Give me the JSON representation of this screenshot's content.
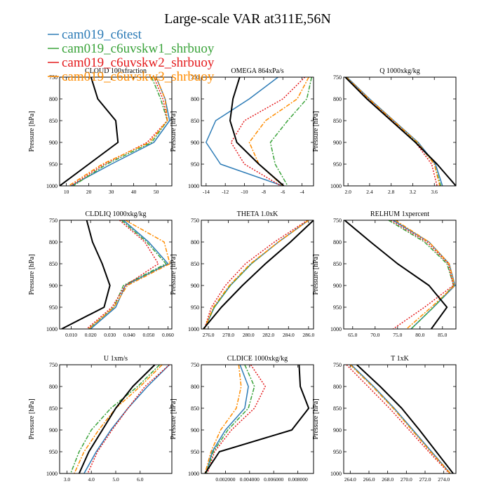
{
  "title": "Large-scale VAR at311E,56N",
  "legend": [
    {
      "name": "cam019_c6test",
      "color": "#2c7bb6"
    },
    {
      "name": "cam019_c6uvskw1_shrbuoy",
      "color": "#3aa33a"
    },
    {
      "name": "cam019_c6uvskw2_shrbuoy",
      "color": "#e41a1c"
    },
    {
      "name": "cam019_c6uvskw3_shrbuoy",
      "color": "#ff8c00"
    }
  ],
  "ref_color": "#000000",
  "chart_data": [
    {
      "type": "line",
      "title": "CLOUD  100xfraction",
      "ylabel": "Pressure [hPa]",
      "ylim": [
        1000,
        750
      ],
      "yticks": [
        750,
        800,
        850,
        900,
        950,
        1000
      ],
      "xlim": [
        7,
        57
      ],
      "xticks": [
        10,
        20,
        30,
        40,
        50
      ],
      "xticklabels": [
        "10",
        "20",
        "30",
        "40",
        "50"
      ],
      "y": [
        750,
        800,
        850,
        900,
        950,
        1000
      ],
      "ref": [
        21,
        24,
        32,
        33,
        20,
        7
      ],
      "series": [
        {
          "name": "cam019_c6test",
          "values": [
            50,
            54,
            56,
            49,
            30,
            12
          ]
        },
        {
          "name": "cam019_c6uvskw1_shrbuoy",
          "values": [
            48,
            52,
            55,
            48,
            28,
            13
          ]
        },
        {
          "name": "cam019_c6uvskw2_shrbuoy",
          "values": [
            49,
            53,
            55,
            46,
            27,
            12
          ]
        },
        {
          "name": "cam019_c6uvskw3_shrbuoy",
          "values": [
            50,
            54,
            55,
            47,
            26,
            11
          ]
        }
      ]
    },
    {
      "type": "line",
      "title": "OMEGA  864xPa/s",
      "ylabel": "Pressure [hPa]",
      "ylim": [
        1000,
        750
      ],
      "yticks": [
        750,
        800,
        850,
        900,
        950,
        1000
      ],
      "xlim": [
        -14.5,
        -2.8
      ],
      "xticks": [
        -14,
        -12,
        -10,
        -8,
        -6,
        -4
      ],
      "xticklabels": [
        "-14",
        "-12",
        "-10",
        "-8",
        "-6",
        "-4"
      ],
      "y": [
        750,
        800,
        850,
        900,
        950,
        1000
      ],
      "ref": [
        -10.5,
        -11.2,
        -11.5,
        -10.8,
        -8.5,
        -5.9
      ],
      "series": [
        {
          "name": "cam019_c6test",
          "values": [
            -6.5,
            -9.5,
            -13.0,
            -14.0,
            -12.5,
            -6.0
          ]
        },
        {
          "name": "cam019_c6uvskw1_shrbuoy",
          "values": [
            -3.0,
            -3.5,
            -5.5,
            -7.3,
            -6.8,
            -5.5
          ]
        },
        {
          "name": "cam019_c6uvskw2_shrbuoy",
          "values": [
            -3.7,
            -6.0,
            -10.0,
            -11.4,
            -10.0,
            -6.2
          ]
        },
        {
          "name": "cam019_c6uvskw3_shrbuoy",
          "values": [
            -3.3,
            -4.5,
            -7.8,
            -9.5,
            -8.5,
            -6.0
          ]
        }
      ]
    },
    {
      "type": "line",
      "title": "Q  1000xkg/kg",
      "ylabel": "Pressure [hPa]",
      "ylim": [
        1000,
        750
      ],
      "yticks": [
        750,
        800,
        850,
        900,
        950,
        1000
      ],
      "xlim": [
        1.92,
        4.0
      ],
      "xticks": [
        2.0,
        2.4,
        2.8,
        3.2,
        3.6
      ],
      "xticklabels": [
        "2.0",
        "2.4",
        "2.8",
        "3.2",
        "3.6"
      ],
      "y": [
        750,
        800,
        850,
        900,
        950,
        1000
      ],
      "ref": [
        1.95,
        2.35,
        2.8,
        3.25,
        3.65,
        4.0
      ],
      "series": [
        {
          "name": "cam019_c6test",
          "values": [
            1.98,
            2.4,
            2.85,
            3.3,
            3.62,
            3.75
          ]
        },
        {
          "name": "cam019_c6uvskw1_shrbuoy",
          "values": [
            1.97,
            2.38,
            2.83,
            3.28,
            3.6,
            3.72
          ]
        },
        {
          "name": "cam019_c6uvskw2_shrbuoy",
          "values": [
            1.96,
            2.37,
            2.82,
            3.25,
            3.55,
            3.65
          ]
        },
        {
          "name": "cam019_c6uvskw3_shrbuoy",
          "values": [
            1.97,
            2.39,
            2.84,
            3.29,
            3.6,
            3.7
          ]
        }
      ]
    },
    {
      "type": "line",
      "title": "CLDLIQ  1000xkg/kg",
      "ylabel": "Pressure [hPa]",
      "ylim": [
        1000,
        750
      ],
      "yticks": [
        750,
        800,
        850,
        900,
        950,
        1000
      ],
      "xlim": [
        0.004,
        0.062
      ],
      "xticks": [
        0.01,
        0.02,
        0.03,
        0.04,
        0.05,
        0.06
      ],
      "xticklabels": [
        "0.010",
        "0.020",
        "0.030",
        "0.040",
        "0.050",
        "0.060"
      ],
      "y": [
        750,
        800,
        850,
        900,
        950,
        1000
      ],
      "ref": [
        0.018,
        0.021,
        0.026,
        0.03,
        0.027,
        0.005
      ],
      "series": [
        {
          "name": "cam019_c6test",
          "values": [
            0.037,
            0.05,
            0.06,
            0.038,
            0.033,
            0.02
          ]
        },
        {
          "name": "cam019_c6uvskw1_shrbuoy",
          "values": [
            0.036,
            0.049,
            0.059,
            0.037,
            0.032,
            0.019
          ]
        },
        {
          "name": "cam019_c6uvskw2_shrbuoy",
          "values": [
            0.035,
            0.048,
            0.055,
            0.038,
            0.031,
            0.018
          ]
        },
        {
          "name": "cam019_c6uvskw3_shrbuoy",
          "values": [
            0.038,
            0.058,
            0.061,
            0.039,
            0.032,
            0.019
          ]
        }
      ]
    },
    {
      "type": "line",
      "title": "THETA  1.0xK",
      "ylabel": "Pressure [hPa]",
      "ylim": [
        1000,
        750
      ],
      "yticks": [
        750,
        800,
        850,
        900,
        950,
        1000
      ],
      "xlim": [
        275.3,
        286.5
      ],
      "xticks": [
        276,
        278,
        280,
        282,
        284,
        286
      ],
      "xticklabels": [
        "276.0",
        "278.0",
        "280.0",
        "282.0",
        "284.0",
        "286.0"
      ],
      "y": [
        750,
        800,
        850,
        900,
        950,
        1000
      ],
      "ref": [
        286.5,
        284.2,
        281.7,
        279.4,
        277.3,
        275.5
      ],
      "series": [
        {
          "name": "cam019_c6test",
          "values": [
            286.0,
            283.0,
            280.3,
            278.2,
            276.6,
            275.6
          ]
        },
        {
          "name": "cam019_c6uvskw1_shrbuoy",
          "values": [
            286.0,
            283.0,
            280.3,
            278.2,
            276.6,
            275.6
          ]
        },
        {
          "name": "cam019_c6uvskw2_shrbuoy",
          "values": [
            285.9,
            282.6,
            279.7,
            277.7,
            276.3,
            275.6
          ]
        },
        {
          "name": "cam019_c6uvskw3_shrbuoy",
          "values": [
            286.0,
            283.0,
            280.2,
            278.1,
            276.5,
            275.6
          ]
        }
      ]
    },
    {
      "type": "line",
      "title": "RELHUM  1xpercent",
      "ylabel": "Pressure [hPa]",
      "ylim": [
        1000,
        750
      ],
      "yticks": [
        750,
        800,
        850,
        900,
        950,
        1000
      ],
      "xlim": [
        63,
        88
      ],
      "xticks": [
        65,
        70,
        75,
        80,
        85
      ],
      "xticklabels": [
        "65.0",
        "70.0",
        "75.0",
        "80.0",
        "85.0"
      ],
      "y": [
        750,
        800,
        850,
        900,
        950,
        1000
      ],
      "ref": [
        63.2,
        69,
        75,
        82,
        86,
        82.5
      ],
      "series": [
        {
          "name": "cam019_c6test",
          "values": [
            74,
            82,
            86.5,
            87.8,
            83,
            78
          ]
        },
        {
          "name": "cam019_c6uvskw1_shrbuoy",
          "values": [
            73,
            81,
            86,
            87.5,
            83,
            78
          ]
        },
        {
          "name": "cam019_c6uvskw2_shrbuoy",
          "values": [
            73.5,
            81.5,
            86.3,
            87.4,
            81,
            74
          ]
        },
        {
          "name": "cam019_c6uvskw3_shrbuoy",
          "values": [
            74.5,
            82,
            86.5,
            87.7,
            82.5,
            77
          ]
        }
      ]
    },
    {
      "type": "line",
      "title": "U  1xm/s",
      "ylabel": "Pressure [hPa]",
      "ylim": [
        1000,
        750
      ],
      "yticks": [
        750,
        800,
        850,
        900,
        950,
        1000
      ],
      "xlim": [
        2.7,
        7.3
      ],
      "xticks": [
        3.0,
        4.0,
        5.0,
        6.0
      ],
      "xticklabels": [
        "3.0",
        "4.0",
        "5.0",
        "6.0"
      ],
      "y": [
        750,
        800,
        850,
        900,
        950,
        1000
      ],
      "ref": [
        6.6,
        5.7,
        5.0,
        4.45,
        3.9,
        3.5
      ],
      "series": [
        {
          "name": "cam019_c6test",
          "values": [
            7.2,
            6.3,
            5.5,
            4.8,
            4.2,
            3.7
          ]
        },
        {
          "name": "cam019_c6uvskw1_shrbuoy",
          "values": [
            6.8,
            5.9,
            4.8,
            4.0,
            3.5,
            3.15
          ]
        },
        {
          "name": "cam019_c6uvskw2_shrbuoy",
          "values": [
            7.2,
            6.2,
            5.5,
            4.85,
            4.25,
            3.85
          ]
        },
        {
          "name": "cam019_c6uvskw3_shrbuoy",
          "values": [
            6.9,
            6.0,
            5.0,
            4.3,
            3.7,
            3.3
          ]
        }
      ]
    },
    {
      "type": "line",
      "title": "CLDICE  1000xkg/kg",
      "ylabel": "Pressure [hPa]",
      "ylim": [
        1000,
        750
      ],
      "yticks": [
        750,
        800,
        850,
        900,
        950,
        1000
      ],
      "xlim": [
        0,
        0.0093
      ],
      "xticks": [
        0.002,
        0.004,
        0.006,
        0.008
      ],
      "xticklabels": [
        "0.002000",
        "0.004000",
        "0.006000",
        "0.008000"
      ],
      "y": [
        750,
        800,
        850,
        900,
        950,
        1000
      ],
      "ref": [
        0.0081,
        0.0082,
        0.0089,
        0.0075,
        0.0015,
        0.0003
      ],
      "series": [
        {
          "name": "cam019_c6test",
          "values": [
            0.0032,
            0.0039,
            0.0036,
            0.002,
            0.0009,
            0.0004
          ]
        },
        {
          "name": "cam019_c6uvskw1_shrbuoy",
          "values": [
            0.0036,
            0.0044,
            0.0039,
            0.0022,
            0.001,
            0.0004
          ]
        },
        {
          "name": "cam019_c6uvskw2_shrbuoy",
          "values": [
            0.0041,
            0.0053,
            0.0044,
            0.0025,
            0.0011,
            0.0005
          ]
        },
        {
          "name": "cam019_c6uvskw3_shrbuoy",
          "values": [
            0.0031,
            0.0033,
            0.0029,
            0.0016,
            0.0008,
            0.0003
          ]
        }
      ]
    },
    {
      "type": "line",
      "title": "T  1xK",
      "ylabel": "Pressure [hPa]",
      "ylim": [
        1000,
        750
      ],
      "yticks": [
        750,
        800,
        850,
        900,
        950,
        1000
      ],
      "xlim": [
        263.3,
        275.3
      ],
      "xticks": [
        264,
        266,
        268,
        270,
        272,
        274
      ],
      "xticklabels": [
        "264.0",
        "266.0",
        "268.0",
        "270.0",
        "272.0",
        "274.0"
      ],
      "y": [
        750,
        800,
        850,
        900,
        950,
        1000
      ],
      "ref": [
        264.7,
        267.2,
        269.5,
        271.4,
        273.2,
        275.0
      ],
      "series": [
        {
          "name": "cam019_c6test",
          "values": [
            264.1,
            266.5,
            268.7,
            270.7,
            272.7,
            274.7
          ]
        },
        {
          "name": "cam019_c6uvskw1_shrbuoy",
          "values": [
            264.0,
            266.4,
            268.6,
            270.6,
            272.6,
            274.7
          ]
        },
        {
          "name": "cam019_c6uvskw2_shrbuoy",
          "values": [
            263.6,
            265.9,
            268.2,
            270.3,
            272.4,
            274.6
          ]
        },
        {
          "name": "cam019_c6uvskw3_shrbuoy",
          "values": [
            264.0,
            266.4,
            268.6,
            270.6,
            272.6,
            274.7
          ]
        }
      ]
    }
  ]
}
